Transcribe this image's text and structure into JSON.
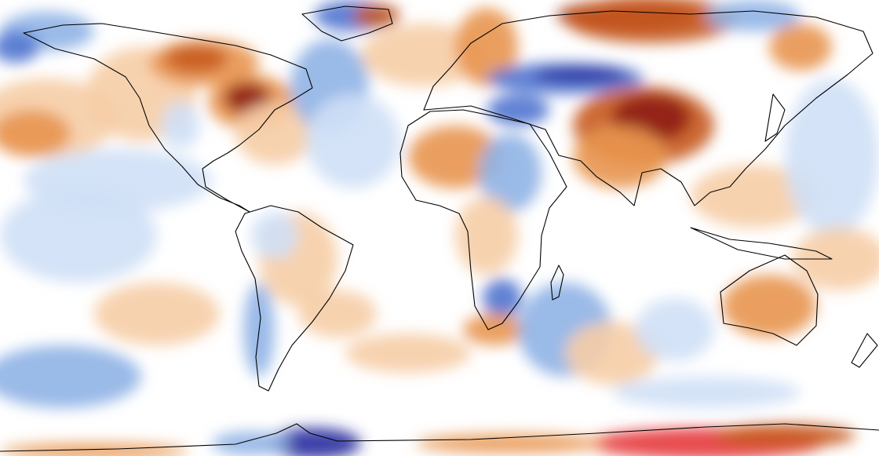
{
  "map": {
    "type": "global temperature anomaly",
    "projection": "equirectangular",
    "background_color": "#ffffff",
    "coastline_color": "#000000",
    "color_scale": {
      "cold_extreme": "#2a2f9e",
      "cold_strong": "#4f74cf",
      "cold_mid": "#8fb3e6",
      "cold_light": "#cfe0f6",
      "neutral": "#ffffff",
      "warm_light": "#f6cda6",
      "warm_mid": "#e8954f",
      "warm_strong": "#c65a1e",
      "warm_extreme": "#8e1c12",
      "hot_antarctic": "#e5383b"
    }
  }
}
